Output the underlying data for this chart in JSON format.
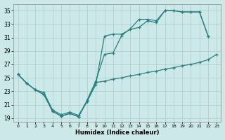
{
  "xlabel": "Humidex (Indice chaleur)",
  "background_color": "#cce8e8",
  "grid_color": "#aacccc",
  "line_color": "#2a8080",
  "xlim": [
    -0.5,
    23.5
  ],
  "ylim": [
    18.5,
    36.0
  ],
  "xticks": [
    0,
    1,
    2,
    3,
    4,
    5,
    6,
    7,
    8,
    9,
    10,
    11,
    12,
    13,
    14,
    15,
    16,
    17,
    18,
    19,
    20,
    21,
    22,
    23
  ],
  "yticks": [
    19,
    21,
    23,
    25,
    27,
    29,
    31,
    33,
    35
  ],
  "s1_x": [
    0,
    1,
    2,
    3,
    4,
    5,
    6,
    7,
    8,
    9,
    10,
    11,
    12,
    13,
    14,
    15,
    16,
    17,
    18,
    19,
    20,
    21,
    22
  ],
  "s1_y": [
    25.5,
    24.2,
    23.2,
    22.5,
    20.0,
    19.3,
    19.7,
    19.2,
    21.5,
    24.0,
    31.2,
    31.5,
    31.5,
    32.2,
    32.5,
    33.5,
    33.2,
    35.0,
    35.0,
    34.8,
    34.8,
    34.8,
    31.2
  ],
  "s2_x": [
    0,
    1,
    2,
    3,
    4,
    5,
    6,
    7,
    8,
    9,
    10,
    11,
    12,
    13,
    14,
    15,
    16,
    17,
    18,
    19,
    20,
    21,
    22
  ],
  "s2_y": [
    25.5,
    24.2,
    23.2,
    22.5,
    20.0,
    19.3,
    19.7,
    19.2,
    21.7,
    24.5,
    28.5,
    28.7,
    31.3,
    32.3,
    33.7,
    33.7,
    33.5,
    35.0,
    35.0,
    34.8,
    34.8,
    34.8,
    31.2
  ],
  "s3_x": [
    0,
    1,
    2,
    3,
    4,
    5,
    6,
    7,
    8,
    9,
    10,
    11,
    12,
    13,
    14,
    15,
    16,
    17,
    18,
    19,
    20,
    21,
    22,
    23
  ],
  "s3_y": [
    25.5,
    24.2,
    23.2,
    22.8,
    20.2,
    19.5,
    19.9,
    19.4,
    21.5,
    24.3,
    24.5,
    24.8,
    25.0,
    25.3,
    25.5,
    25.8,
    26.0,
    26.3,
    26.5,
    26.8,
    27.0,
    27.3,
    27.7,
    28.5
  ]
}
